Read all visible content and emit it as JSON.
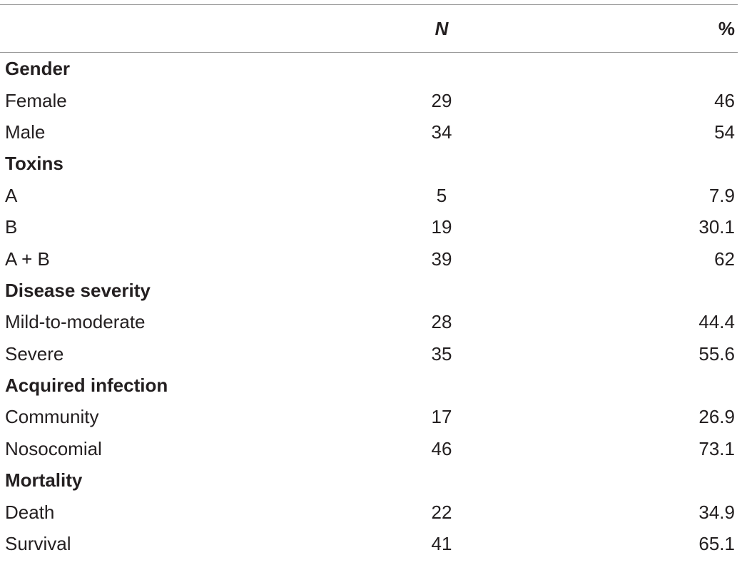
{
  "table": {
    "header": {
      "label": "",
      "n": "N",
      "pct": "%"
    },
    "sections": [
      {
        "title": "Gender",
        "rows": [
          {
            "label": "Female",
            "n": "29",
            "pct": "46"
          },
          {
            "label": "Male",
            "n": "34",
            "pct": "54"
          }
        ]
      },
      {
        "title": "Toxins",
        "rows": [
          {
            "label": "A",
            "n": "5",
            "pct": "7.9"
          },
          {
            "label": "B",
            "n": "19",
            "pct": "30.1"
          },
          {
            "label": "A + B",
            "n": "39",
            "pct": "62"
          }
        ]
      },
      {
        "title": "Disease severity",
        "rows": [
          {
            "label": "Mild-to-moderate",
            "n": "28",
            "pct": "44.4"
          },
          {
            "label": "Severe",
            "n": "35",
            "pct": "55.6"
          }
        ]
      },
      {
        "title": "Acquired infection",
        "rows": [
          {
            "label": "Community",
            "n": "17",
            "pct": "26.9"
          },
          {
            "label": "Nosocomial",
            "n": "46",
            "pct": "73.1"
          }
        ]
      },
      {
        "title": "Mortality",
        "rows": [
          {
            "label": "Death",
            "n": "22",
            "pct": "34.9"
          },
          {
            "label": "Survival",
            "n": "41",
            "pct": "65.1"
          }
        ]
      }
    ]
  }
}
